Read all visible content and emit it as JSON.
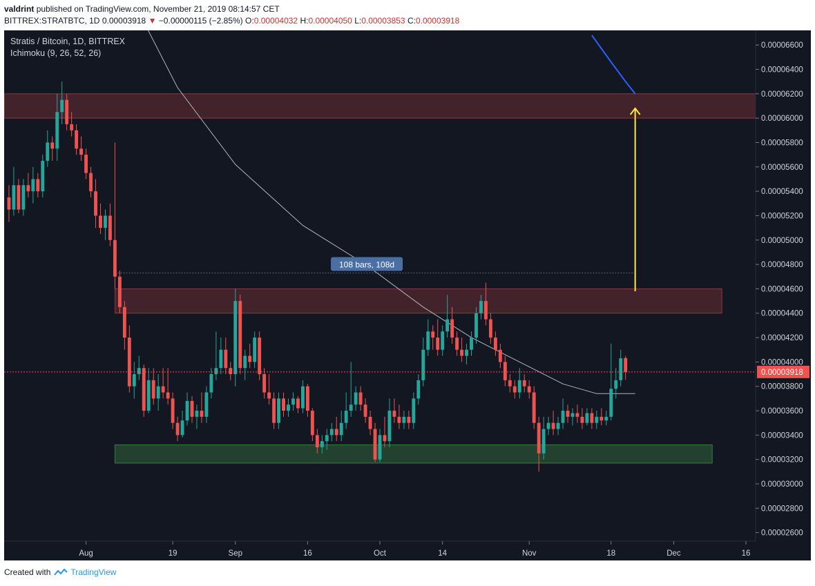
{
  "header": {
    "author": "valdrint",
    "published_text": "published on TradingView.com, November 21, 2019 08:14:57 CET",
    "symbol": "BITTREX:STRATBTC, 1D",
    "last_price": "0.00003918",
    "change_arrow": "▼",
    "change": "−0.00000115 (−2.85%)",
    "ohlc": [
      {
        "label": "O:",
        "value": "0.00004032"
      },
      {
        "label": "H:",
        "value": "0.00004050"
      },
      {
        "label": "L:",
        "value": "0.00003853"
      },
      {
        "label": "C:",
        "value": "0.00003918"
      }
    ]
  },
  "legend": {
    "title": "Stratis / Bitcoin, 1D, BITTREX",
    "indicator": "Ichimoku (9, 26, 52, 26)"
  },
  "footer": {
    "created_with": "Created with",
    "brand": "TradingView"
  },
  "colors": {
    "background": "#131722",
    "up": "#26a69a",
    "down": "#ef5350",
    "axis_text": "#d1d4dc",
    "resistance_zone": "#ef5350",
    "support_zone": "#4caf50",
    "target_arrow": "#ffeb3b",
    "base_line": "#b2b5be",
    "cloud_line": "#2962ff",
    "price_label": "#ef5350",
    "measure_label": "#4a6fa5"
  },
  "chart_data": {
    "type": "candlestick",
    "title": "Stratis / Bitcoin, 1D, BITTREX",
    "y_ticks": [
      "0.00006600",
      "0.00006400",
      "0.00006200",
      "0.00006000",
      "0.00005800",
      "0.00005600",
      "0.00005400",
      "0.00005200",
      "0.00005000",
      "0.00004800",
      "0.00004600",
      "0.00004400",
      "0.00004200",
      "0.00004000",
      "0.00003800",
      "0.00003600",
      "0.00003400",
      "0.00003200",
      "0.00003000",
      "0.00002800",
      "0.00002600"
    ],
    "ylim": [
      2.53e-05,
      6.72e-05
    ],
    "x_ticks": [
      {
        "label": "Aug",
        "date": "2019-08-01"
      },
      {
        "label": "19",
        "date": "2019-08-19"
      },
      {
        "label": "Sep",
        "date": "2019-09-01"
      },
      {
        "label": "16",
        "date": "2019-09-16"
      },
      {
        "label": "Oct",
        "date": "2019-10-01"
      },
      {
        "label": "14",
        "date": "2019-10-14"
      },
      {
        "label": "Nov",
        "date": "2019-11-01"
      },
      {
        "label": "18",
        "date": "2019-11-18"
      },
      {
        "label": "Dec",
        "date": "2019-12-01"
      },
      {
        "label": "16",
        "date": "2019-12-16"
      }
    ],
    "xlim": [
      "2019-07-15",
      "2019-12-18"
    ],
    "current_price_label": "0.00003918",
    "current_price": 3.918e-05,
    "candles": [
      [
        "2019-07-16",
        5.35e-05,
        5.45e-05,
        5.15e-05,
        5.25e-05
      ],
      [
        "2019-07-17",
        5.25e-05,
        5.6e-05,
        5.2e-05,
        5.45e-05
      ],
      [
        "2019-07-18",
        5.45e-05,
        5.5e-05,
        5.22e-05,
        5.25e-05
      ],
      [
        "2019-07-19",
        5.25e-05,
        5.5e-05,
        5.2e-05,
        5.45e-05
      ],
      [
        "2019-07-20",
        5.45e-05,
        5.55e-05,
        5.35e-05,
        5.4e-05
      ],
      [
        "2019-07-21",
        5.4e-05,
        5.6e-05,
        5.3e-05,
        5.5e-05
      ],
      [
        "2019-07-22",
        5.5e-05,
        5.55e-05,
        5.35e-05,
        5.4e-05
      ],
      [
        "2019-07-23",
        5.4e-05,
        5.7e-05,
        5.35e-05,
        5.65e-05
      ],
      [
        "2019-07-24",
        5.65e-05,
        5.9e-05,
        5.6e-05,
        5.8e-05
      ],
      [
        "2019-07-25",
        5.8e-05,
        5.85e-05,
        5.65e-05,
        5.75e-05
      ],
      [
        "2019-07-26",
        5.75e-05,
        6.2e-05,
        5.65e-05,
        6.05e-05
      ],
      [
        "2019-07-27",
        6.05e-05,
        6.3e-05,
        5.95e-05,
        6.15e-05
      ],
      [
        "2019-07-28",
        6.15e-05,
        6.2e-05,
        5.9e-05,
        5.95e-05
      ],
      [
        "2019-07-29",
        5.95e-05,
        6.05e-05,
        5.85e-05,
        5.9e-05
      ],
      [
        "2019-07-30",
        5.9e-05,
        5.95e-05,
        5.7e-05,
        5.75e-05
      ],
      [
        "2019-07-31",
        5.75e-05,
        5.85e-05,
        5.65e-05,
        5.7e-05
      ],
      [
        "2019-08-01",
        5.7e-05,
        5.75e-05,
        5.5e-05,
        5.55e-05
      ],
      [
        "2019-08-02",
        5.55e-05,
        5.6e-05,
        5.35e-05,
        5.4e-05
      ],
      [
        "2019-08-03",
        5.4e-05,
        5.5e-05,
        5.1e-05,
        5.2e-05
      ],
      [
        "2019-08-04",
        5.2e-05,
        5.3e-05,
        5.05e-05,
        5.1e-05
      ],
      [
        "2019-08-05",
        5.1e-05,
        5.25e-05,
        5e-05,
        5.2e-05
      ],
      [
        "2019-08-06",
        5.2e-05,
        5.3e-05,
        4.95e-05,
        5e-05
      ],
      [
        "2019-08-07",
        5e-05,
        5.8e-05,
        4.6e-05,
        4.7e-05
      ],
      [
        "2019-08-08",
        4.7e-05,
        4.75e-05,
        4.4e-05,
        4.45e-05
      ],
      [
        "2019-08-09",
        4.45e-05,
        4.5e-05,
        4.1e-05,
        4.2e-05
      ],
      [
        "2019-08-10",
        4.2e-05,
        4.3e-05,
        3.75e-05,
        3.8e-05
      ],
      [
        "2019-08-11",
        3.8e-05,
        4e-05,
        3.7e-05,
        3.9e-05
      ],
      [
        "2019-08-12",
        3.9e-05,
        4.05e-05,
        3.85e-05,
        3.95e-05
      ],
      [
        "2019-08-13",
        3.95e-05,
        3.98e-05,
        3.55e-05,
        3.6e-05
      ],
      [
        "2019-08-14",
        3.6e-05,
        3.95e-05,
        3.58e-05,
        3.85e-05
      ],
      [
        "2019-08-15",
        3.85e-05,
        3.95e-05,
        3.65e-05,
        3.7e-05
      ],
      [
        "2019-08-16",
        3.7e-05,
        3.9e-05,
        3.6e-05,
        3.8e-05
      ],
      [
        "2019-08-17",
        3.8e-05,
        3.95e-05,
        3.7e-05,
        3.75e-05
      ],
      [
        "2019-08-18",
        3.75e-05,
        3.95e-05,
        3.65e-05,
        3.7e-05
      ],
      [
        "2019-08-19",
        3.7e-05,
        3.75e-05,
        3.45e-05,
        3.5e-05
      ],
      [
        "2019-08-20",
        3.5e-05,
        3.55e-05,
        3.35e-05,
        3.4e-05
      ],
      [
        "2019-08-21",
        3.4e-05,
        3.6e-05,
        3.38e-05,
        3.52e-05
      ],
      [
        "2019-08-22",
        3.52e-05,
        3.75e-05,
        3.48e-05,
        3.68e-05
      ],
      [
        "2019-08-23",
        3.68e-05,
        3.72e-05,
        3.5e-05,
        3.55e-05
      ],
      [
        "2019-08-24",
        3.55e-05,
        3.65e-05,
        3.45e-05,
        3.6e-05
      ],
      [
        "2019-08-25",
        3.6e-05,
        3.75e-05,
        3.5e-05,
        3.55e-05
      ],
      [
        "2019-08-26",
        3.55e-05,
        3.8e-05,
        3.5e-05,
        3.75e-05
      ],
      [
        "2019-08-27",
        3.75e-05,
        3.95e-05,
        3.7e-05,
        3.9e-05
      ],
      [
        "2019-08-28",
        3.9e-05,
        4.25e-05,
        3.85e-05,
        3.95e-05
      ],
      [
        "2019-08-29",
        3.95e-05,
        4.2e-05,
        3.9e-05,
        4.1e-05
      ],
      [
        "2019-08-30",
        4.1e-05,
        4.2e-05,
        3.9e-05,
        3.95e-05
      ],
      [
        "2019-08-31",
        3.95e-05,
        4e-05,
        3.85e-05,
        3.9e-05
      ],
      [
        "2019-09-01",
        3.9e-05,
        4.6e-05,
        3.8e-05,
        4.5e-05
      ],
      [
        "2019-09-02",
        4.5e-05,
        4.55e-05,
        3.9e-05,
        3.95e-05
      ],
      [
        "2019-09-03",
        3.95e-05,
        4.1e-05,
        3.85e-05,
        4.05e-05
      ],
      [
        "2019-09-04",
        4.05e-05,
        4.15e-05,
        3.95e-05,
        4e-05
      ],
      [
        "2019-09-05",
        4e-05,
        4.25e-05,
        3.95e-05,
        4.2e-05
      ],
      [
        "2019-09-06",
        4.2e-05,
        4.25e-05,
        3.85e-05,
        3.9e-05
      ],
      [
        "2019-09-07",
        3.9e-05,
        3.95e-05,
        3.7e-05,
        3.75e-05
      ],
      [
        "2019-09-08",
        3.75e-05,
        3.9e-05,
        3.65e-05,
        3.7e-05
      ],
      [
        "2019-09-09",
        3.7e-05,
        3.75e-05,
        3.45e-05,
        3.5e-05
      ],
      [
        "2019-09-10",
        3.5e-05,
        3.75e-05,
        3.45e-05,
        3.7e-05
      ],
      [
        "2019-09-11",
        3.7e-05,
        3.75e-05,
        3.55e-05,
        3.6e-05
      ],
      [
        "2019-09-12",
        3.6e-05,
        3.7e-05,
        3.55e-05,
        3.65e-05
      ],
      [
        "2019-09-13",
        3.65e-05,
        3.75e-05,
        3.6e-05,
        3.7e-05
      ],
      [
        "2019-09-14",
        3.7e-05,
        3.72e-05,
        3.58e-05,
        3.62e-05
      ],
      [
        "2019-09-15",
        3.62e-05,
        3.85e-05,
        3.58e-05,
        3.8e-05
      ],
      [
        "2019-09-16",
        3.8e-05,
        3.82e-05,
        3.55e-05,
        3.6e-05
      ],
      [
        "2019-09-17",
        3.6e-05,
        3.62e-05,
        3.35e-05,
        3.4e-05
      ],
      [
        "2019-09-18",
        3.4e-05,
        3.45e-05,
        3.25e-05,
        3.3e-05
      ],
      [
        "2019-09-19",
        3.3e-05,
        3.4e-05,
        3.25e-05,
        3.35e-05
      ],
      [
        "2019-09-20",
        3.35e-05,
        3.45e-05,
        3.28e-05,
        3.4e-05
      ],
      [
        "2019-09-21",
        3.4e-05,
        3.5e-05,
        3.35e-05,
        3.45e-05
      ],
      [
        "2019-09-22",
        3.45e-05,
        3.55e-05,
        3.35e-05,
        3.4e-05
      ],
      [
        "2019-09-23",
        3.4e-05,
        3.6e-05,
        3.35e-05,
        3.5e-05
      ],
      [
        "2019-09-24",
        3.5e-05,
        3.75e-05,
        3.45e-05,
        3.6e-05
      ],
      [
        "2019-09-25",
        3.6e-05,
        4e-05,
        3.55e-05,
        3.65e-05
      ],
      [
        "2019-09-26",
        3.65e-05,
        3.8e-05,
        3.6e-05,
        3.75e-05
      ],
      [
        "2019-09-27",
        3.75e-05,
        3.8e-05,
        3.6e-05,
        3.65e-05
      ],
      [
        "2019-09-28",
        3.65e-05,
        3.7e-05,
        3.5e-05,
        3.55e-05
      ],
      [
        "2019-09-29",
        3.55e-05,
        3.6e-05,
        3.4e-05,
        3.45e-05
      ],
      [
        "2019-09-30",
        3.45e-05,
        3.5e-05,
        3.18e-05,
        3.2e-05
      ],
      [
        "2019-10-01",
        3.2e-05,
        3.45e-05,
        3.18e-05,
        3.4e-05
      ],
      [
        "2019-10-02",
        3.4e-05,
        3.55e-05,
        3.3e-05,
        3.35e-05
      ],
      [
        "2019-10-03",
        3.35e-05,
        3.7e-05,
        3.3e-05,
        3.6e-05
      ],
      [
        "2019-10-04",
        3.6e-05,
        3.7e-05,
        3.5e-05,
        3.55e-05
      ],
      [
        "2019-10-05",
        3.55e-05,
        3.65e-05,
        3.45e-05,
        3.5e-05
      ],
      [
        "2019-10-06",
        3.5e-05,
        3.6e-05,
        3.45e-05,
        3.55e-05
      ],
      [
        "2019-10-07",
        3.55e-05,
        3.6e-05,
        3.45e-05,
        3.5e-05
      ],
      [
        "2019-10-08",
        3.5e-05,
        3.75e-05,
        3.45e-05,
        3.7e-05
      ],
      [
        "2019-10-09",
        3.7e-05,
        3.9e-05,
        3.65e-05,
        3.85e-05
      ],
      [
        "2019-10-10",
        3.85e-05,
        4.2e-05,
        3.8e-05,
        4.1e-05
      ],
      [
        "2019-10-11",
        4.1e-05,
        4.35e-05,
        4.05e-05,
        4.25e-05
      ],
      [
        "2019-10-12",
        4.25e-05,
        4.3e-05,
        4.1e-05,
        4.2e-05
      ],
      [
        "2019-10-13",
        4.2e-05,
        4.35e-05,
        4.05e-05,
        4.1e-05
      ],
      [
        "2019-10-14",
        4.1e-05,
        4.3e-05,
        4.05e-05,
        4.25e-05
      ],
      [
        "2019-10-15",
        4.25e-05,
        4.55e-05,
        4.2e-05,
        4.35e-05
      ],
      [
        "2019-10-16",
        4.35e-05,
        4.45e-05,
        4.15e-05,
        4.2e-05
      ],
      [
        "2019-10-17",
        4.2e-05,
        4.25e-05,
        4.05e-05,
        4.1e-05
      ],
      [
        "2019-10-18",
        4.1e-05,
        4.2e-05,
        4e-05,
        4.05e-05
      ],
      [
        "2019-10-19",
        4.05e-05,
        4.15e-05,
        3.98e-05,
        4.1e-05
      ],
      [
        "2019-10-20",
        4.1e-05,
        4.25e-05,
        4.05e-05,
        4.2e-05
      ],
      [
        "2019-10-21",
        4.2e-05,
        4.45e-05,
        4.15e-05,
        4.4e-05
      ],
      [
        "2019-10-22",
        4.4e-05,
        4.55e-05,
        4.35e-05,
        4.5e-05
      ],
      [
        "2019-10-23",
        4.5e-05,
        4.65e-05,
        4.3e-05,
        4.35e-05
      ],
      [
        "2019-10-24",
        4.35e-05,
        4.4e-05,
        4.15e-05,
        4.2e-05
      ],
      [
        "2019-10-25",
        4.2e-05,
        4.25e-05,
        4.05e-05,
        4.1e-05
      ],
      [
        "2019-10-26",
        4.1e-05,
        4.15e-05,
        3.95e-05,
        4e-05
      ],
      [
        "2019-10-27",
        4e-05,
        4.05e-05,
        3.8e-05,
        3.85e-05
      ],
      [
        "2019-10-28",
        3.85e-05,
        3.9e-05,
        3.75e-05,
        3.8e-05
      ],
      [
        "2019-10-29",
        3.8e-05,
        3.85e-05,
        3.7e-05,
        3.75e-05
      ],
      [
        "2019-10-30",
        3.75e-05,
        3.95e-05,
        3.7e-05,
        3.85e-05
      ],
      [
        "2019-10-31",
        3.85e-05,
        3.9e-05,
        3.75e-05,
        3.8e-05
      ],
      [
        "2019-11-01",
        3.8e-05,
        3.85e-05,
        3.7e-05,
        3.75e-05
      ],
      [
        "2019-11-02",
        3.75e-05,
        3.8e-05,
        3.45e-05,
        3.5e-05
      ],
      [
        "2019-11-03",
        3.5e-05,
        3.55e-05,
        3.1e-05,
        3.25e-05
      ],
      [
        "2019-11-04",
        3.25e-05,
        3.55e-05,
        3.2e-05,
        3.45e-05
      ],
      [
        "2019-11-05",
        3.45e-05,
        3.55e-05,
        3.4e-05,
        3.5e-05
      ],
      [
        "2019-11-06",
        3.5e-05,
        3.6e-05,
        3.4e-05,
        3.45e-05
      ],
      [
        "2019-11-07",
        3.45e-05,
        3.55e-05,
        3.4e-05,
        3.5e-05
      ],
      [
        "2019-11-08",
        3.5e-05,
        3.7e-05,
        3.45e-05,
        3.6e-05
      ],
      [
        "2019-11-09",
        3.6e-05,
        3.65e-05,
        3.5e-05,
        3.55e-05
      ],
      [
        "2019-11-10",
        3.55e-05,
        3.62e-05,
        3.48e-05,
        3.58e-05
      ],
      [
        "2019-11-11",
        3.58e-05,
        3.65e-05,
        3.5e-05,
        3.55e-05
      ],
      [
        "2019-11-12",
        3.55e-05,
        3.62e-05,
        3.45e-05,
        3.5e-05
      ],
      [
        "2019-11-13",
        3.5e-05,
        3.62e-05,
        3.48e-05,
        3.58e-05
      ],
      [
        "2019-11-14",
        3.58e-05,
        3.62e-05,
        3.45e-05,
        3.5e-05
      ],
      [
        "2019-11-15",
        3.5e-05,
        3.6e-05,
        3.45e-05,
        3.55e-05
      ],
      [
        "2019-11-16",
        3.55e-05,
        3.62e-05,
        3.48e-05,
        3.52e-05
      ],
      [
        "2019-11-17",
        3.52e-05,
        3.6e-05,
        3.48e-05,
        3.55e-05
      ],
      [
        "2019-11-18",
        3.55e-05,
        4.15e-05,
        3.52e-05,
        3.78e-05
      ],
      [
        "2019-11-19",
        3.78e-05,
        3.95e-05,
        3.7e-05,
        3.85e-05
      ],
      [
        "2019-11-20",
        3.85e-05,
        4.1e-05,
        3.8e-05,
        4.03e-05
      ],
      [
        "2019-11-21",
        4.032e-05,
        4.05e-05,
        3.853e-05,
        3.918e-05
      ]
    ],
    "resistance_zones": [
      {
        "from": "2019-07-15",
        "to": "2019-12-18",
        "low": 6e-05,
        "high": 6.2e-05
      },
      {
        "from": "2019-08-07",
        "to": "2019-12-11",
        "low": 4.4e-05,
        "high": 4.6e-05
      }
    ],
    "support_zones": [
      {
        "from": "2019-08-07",
        "to": "2019-12-09",
        "low": 3.17e-05,
        "high": 3.32e-05
      }
    ],
    "measure_label": "108 bars, 108d",
    "measure_line": {
      "from": "2019-08-07",
      "to": "2019-11-23",
      "price": 4.73e-05
    },
    "target_arrow": {
      "date": "2019-11-23",
      "from_price": 4.58e-05,
      "to_price": 6.08e-05
    },
    "base_line": [
      [
        "2019-08-10",
        7.02e-05
      ],
      [
        "2019-08-20",
        6.25e-05
      ],
      [
        "2019-09-01",
        5.62e-05
      ],
      [
        "2019-09-15",
        5.12e-05
      ],
      [
        "2019-09-28",
        4.8e-05
      ],
      [
        "2019-10-10",
        4.45e-05
      ],
      [
        "2019-10-20",
        4.2e-05
      ],
      [
        "2019-10-31",
        3.98e-05
      ],
      [
        "2019-11-08",
        3.82e-05
      ],
      [
        "2019-11-15",
        3.74e-05
      ],
      [
        "2019-11-23",
        3.74e-05
      ]
    ],
    "cloud_line": [
      [
        "2019-11-14",
        6.68e-05
      ],
      [
        "2019-11-18",
        6.46e-05
      ],
      [
        "2019-11-21",
        6.3e-05
      ],
      [
        "2019-11-23",
        6.2e-05
      ]
    ]
  }
}
